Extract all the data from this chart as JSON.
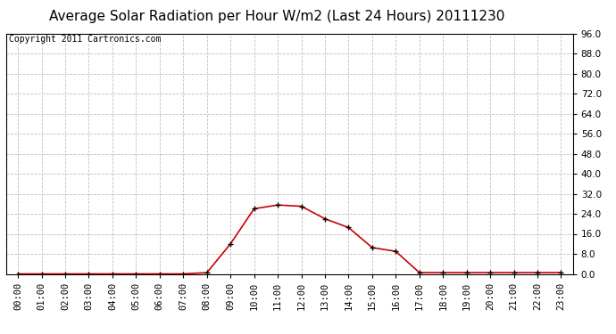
{
  "title": "Average Solar Radiation per Hour W/m2 (Last 24 Hours) 20111230",
  "copyright": "Copyright 2011 Cartronics.com",
  "hours": [
    "00:00",
    "01:00",
    "02:00",
    "03:00",
    "04:00",
    "05:00",
    "06:00",
    "07:00",
    "08:00",
    "09:00",
    "10:00",
    "11:00",
    "12:00",
    "13:00",
    "14:00",
    "15:00",
    "16:00",
    "17:00",
    "18:00",
    "19:00",
    "20:00",
    "21:00",
    "22:00",
    "23:00"
  ],
  "values": [
    0.0,
    0.0,
    0.0,
    0.0,
    0.0,
    0.0,
    0.0,
    0.0,
    0.5,
    12.0,
    26.0,
    27.5,
    27.0,
    22.0,
    18.5,
    10.5,
    9.0,
    0.5,
    0.5,
    0.5,
    0.5,
    0.5,
    0.5,
    0.5
  ],
  "line_color": "#cc0000",
  "marker_color": "#000000",
  "bg_color": "#ffffff",
  "plot_bg_color": "#ffffff",
  "grid_color": "#c0c0c0",
  "ylim": [
    0.0,
    96.0
  ],
  "yticks": [
    0.0,
    8.0,
    16.0,
    24.0,
    32.0,
    40.0,
    48.0,
    56.0,
    64.0,
    72.0,
    80.0,
    88.0,
    96.0
  ],
  "title_fontsize": 11,
  "copyright_fontsize": 7,
  "tick_fontsize": 7.5
}
